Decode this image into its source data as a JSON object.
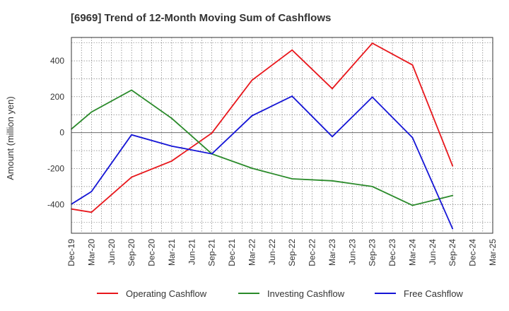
{
  "chart_data": {
    "type": "line",
    "title": "[6969]  Trend of 12-Month Moving Sum of Cashflows",
    "xlabel": "",
    "ylabel": "Amount (million yen)",
    "categories": [
      "Dec-19",
      "Mar-20",
      "Jun-20",
      "Sep-20",
      "Dec-20",
      "Mar-21",
      "Jun-21",
      "Sep-21",
      "Dec-21",
      "Mar-22",
      "Jun-22",
      "Sep-22",
      "Dec-22",
      "Mar-23",
      "Jun-23",
      "Sep-23",
      "Dec-23",
      "Mar-24",
      "Jun-24",
      "Sep-24",
      "Dec-24",
      "Mar-25"
    ],
    "ylim": [
      -560,
      530
    ],
    "yticks": [
      -400,
      -200,
      0,
      200,
      400
    ],
    "ytick_labels": [
      "-400",
      "-200",
      "0",
      "200",
      "400"
    ],
    "grid": true,
    "legend_position": "bottom",
    "series": [
      {
        "name": "Operating Cashflow",
        "color": "#e8171c",
        "x": [
          "Dec-19",
          "Mar-20",
          "Sep-20",
          "Mar-21",
          "Sep-21",
          "Mar-22",
          "Sep-22",
          "Mar-23",
          "Sep-23",
          "Mar-24",
          "Sep-24"
        ],
        "values": [
          -425,
          -443,
          -248,
          -158,
          -2,
          292,
          460,
          245,
          498,
          377,
          -185
        ]
      },
      {
        "name": "Investing Cashflow",
        "color": "#2a8a2a",
        "x": [
          "Dec-19",
          "Mar-20",
          "Sep-20",
          "Mar-21",
          "Sep-21",
          "Mar-22",
          "Sep-22",
          "Mar-23",
          "Sep-23",
          "Mar-24",
          "Sep-24"
        ],
        "values": [
          20,
          115,
          237,
          80,
          -118,
          -198,
          -257,
          -268,
          -300,
          -405,
          -350
        ]
      },
      {
        "name": "Free Cashflow",
        "color": "#1515d6",
        "x": [
          "Dec-19",
          "Mar-20",
          "Sep-20",
          "Mar-21",
          "Sep-21",
          "Mar-22",
          "Sep-22",
          "Mar-23",
          "Sep-23",
          "Mar-24",
          "Sep-24"
        ],
        "values": [
          -398,
          -328,
          -12,
          -75,
          -118,
          94,
          203,
          -22,
          198,
          -28,
          -535
        ]
      }
    ]
  }
}
